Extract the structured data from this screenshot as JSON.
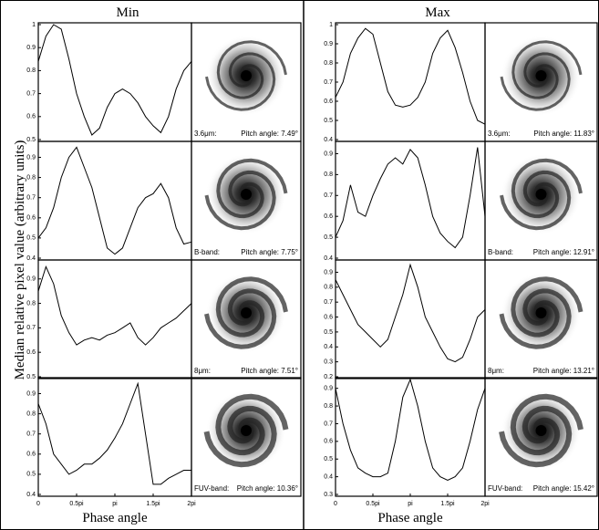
{
  "figure": {
    "columns": [
      "Min",
      "Max"
    ],
    "ylabel": "Median relative pixel value (arbitrary units)",
    "xlabel": "Phase angle"
  },
  "images": [
    {
      "band": "3.6μm:",
      "pitch": "Pitch angle: 7.49°"
    },
    {
      "band": "B-band:",
      "pitch": "Pitch angle: 7.75°"
    },
    {
      "band": "8μm:",
      "pitch": "Pitch angle: 7.51°"
    },
    {
      "band": "FUV-band:",
      "pitch": "Pitch angle: 10.36°"
    },
    {
      "band": "3.6μm:",
      "pitch": "Pitch angle: 11.83°"
    },
    {
      "band": "B-band:",
      "pitch": "Pitch angle: 12.91°"
    },
    {
      "band": "8μm:",
      "pitch": "Pitch angle: 13.21°"
    },
    {
      "band": "FUV-band:",
      "pitch": "Pitch angle: 15.42°"
    }
  ],
  "chart_data": [
    {
      "type": "line",
      "color": "#000000",
      "x": [
        0,
        0.1,
        0.2,
        0.3,
        0.4,
        0.5,
        0.6,
        0.7,
        0.8,
        0.9,
        1.0,
        1.1,
        1.2,
        1.3,
        1.4,
        1.5,
        1.6,
        1.7,
        1.8,
        1.9,
        2.0
      ],
      "values": [
        0.84,
        0.95,
        1.0,
        0.98,
        0.85,
        0.7,
        0.6,
        0.52,
        0.55,
        0.64,
        0.7,
        0.72,
        0.7,
        0.66,
        0.6,
        0.56,
        0.53,
        0.6,
        0.72,
        0.8,
        0.84
      ],
      "xlim": [
        0,
        2
      ],
      "ylim": [
        0.5,
        1
      ],
      "yticks": [
        0.5,
        0.6,
        0.7,
        0.8,
        0.9,
        1
      ]
    },
    {
      "type": "line",
      "color": "#000000",
      "x": [
        0,
        0.1,
        0.2,
        0.3,
        0.4,
        0.5,
        0.6,
        0.7,
        0.8,
        0.9,
        1.0,
        1.1,
        1.2,
        1.3,
        1.4,
        1.5,
        1.6,
        1.7,
        1.8,
        1.9,
        2.0
      ],
      "values": [
        0.5,
        0.55,
        0.65,
        0.8,
        0.9,
        0.95,
        0.85,
        0.75,
        0.6,
        0.45,
        0.42,
        0.45,
        0.55,
        0.65,
        0.7,
        0.72,
        0.77,
        0.7,
        0.55,
        0.47,
        0.48
      ],
      "xlim": [
        0,
        2
      ],
      "ylim": [
        0.4,
        0.97
      ],
      "yticks": [
        0.4,
        0.5,
        0.6,
        0.7,
        0.8,
        0.9
      ]
    },
    {
      "type": "line",
      "color": "#000000",
      "x": [
        0,
        0.1,
        0.2,
        0.3,
        0.4,
        0.5,
        0.6,
        0.7,
        0.8,
        0.9,
        1.0,
        1.1,
        1.2,
        1.3,
        1.4,
        1.5,
        1.6,
        1.7,
        1.8,
        1.9,
        2.0
      ],
      "values": [
        0.85,
        0.95,
        0.88,
        0.75,
        0.68,
        0.63,
        0.65,
        0.66,
        0.65,
        0.67,
        0.68,
        0.7,
        0.72,
        0.66,
        0.63,
        0.66,
        0.7,
        0.72,
        0.74,
        0.77,
        0.8
      ],
      "xlim": [
        0,
        2
      ],
      "ylim": [
        0.5,
        0.97
      ],
      "yticks": [
        0.5,
        0.6,
        0.7,
        0.8,
        0.9
      ]
    },
    {
      "type": "line",
      "color": "#000000",
      "x": [
        0,
        0.1,
        0.2,
        0.3,
        0.4,
        0.5,
        0.6,
        0.7,
        0.8,
        0.9,
        1.0,
        1.1,
        1.2,
        1.3,
        1.4,
        1.5,
        1.6,
        1.7,
        1.8,
        1.9,
        2.0
      ],
      "values": [
        0.85,
        0.75,
        0.6,
        0.55,
        0.5,
        0.52,
        0.55,
        0.55,
        0.58,
        0.62,
        0.68,
        0.75,
        0.85,
        0.95,
        0.7,
        0.45,
        0.45,
        0.48,
        0.5,
        0.52,
        0.52
      ],
      "xlim": [
        0,
        2
      ],
      "ylim": [
        0.4,
        0.97
      ],
      "yticks": [
        0.4,
        0.5,
        0.6,
        0.7,
        0.8,
        0.9
      ],
      "xticks": [
        0,
        {
          "value": 0.5,
          "label": "0.5pi"
        },
        {
          "value": 1,
          "label": "pi"
        },
        {
          "value": 1.5,
          "label": "1.5pi"
        },
        {
          "value": 2,
          "label": "2pi"
        }
      ]
    },
    {
      "type": "line",
      "color": "#000000",
      "x": [
        0,
        0.1,
        0.2,
        0.3,
        0.4,
        0.5,
        0.6,
        0.7,
        0.8,
        0.9,
        1.0,
        1.1,
        1.2,
        1.3,
        1.4,
        1.5,
        1.6,
        1.7,
        1.8,
        1.9,
        2.0
      ],
      "values": [
        0.62,
        0.7,
        0.85,
        0.93,
        0.98,
        0.95,
        0.8,
        0.65,
        0.58,
        0.57,
        0.58,
        0.62,
        0.7,
        0.85,
        0.93,
        0.97,
        0.88,
        0.75,
        0.6,
        0.5,
        0.48
      ],
      "xlim": [
        0,
        2
      ],
      "ylim": [
        0.4,
        1
      ],
      "yticks": [
        0.4,
        0.5,
        0.6,
        0.7,
        0.8,
        0.9,
        1
      ]
    },
    {
      "type": "line",
      "color": "#000000",
      "x": [
        0,
        0.1,
        0.2,
        0.3,
        0.4,
        0.5,
        0.6,
        0.7,
        0.8,
        0.9,
        1.0,
        1.1,
        1.2,
        1.3,
        1.4,
        1.5,
        1.6,
        1.7,
        1.8,
        1.9,
        2.0
      ],
      "values": [
        0.5,
        0.58,
        0.75,
        0.62,
        0.6,
        0.7,
        0.78,
        0.85,
        0.88,
        0.85,
        0.92,
        0.88,
        0.75,
        0.6,
        0.52,
        0.48,
        0.45,
        0.5,
        0.7,
        0.93,
        0.6
      ],
      "xlim": [
        0,
        2
      ],
      "ylim": [
        0.4,
        0.95
      ],
      "yticks": [
        0.4,
        0.5,
        0.6,
        0.7,
        0.8,
        0.9
      ]
    },
    {
      "type": "line",
      "color": "#000000",
      "x": [
        0,
        0.1,
        0.2,
        0.3,
        0.4,
        0.5,
        0.6,
        0.7,
        0.8,
        0.9,
        1.0,
        1.1,
        1.2,
        1.3,
        1.4,
        1.5,
        1.6,
        1.7,
        1.8,
        1.9,
        2.0
      ],
      "values": [
        0.85,
        0.75,
        0.65,
        0.55,
        0.5,
        0.45,
        0.4,
        0.45,
        0.6,
        0.75,
        0.95,
        0.8,
        0.6,
        0.5,
        0.4,
        0.32,
        0.3,
        0.33,
        0.45,
        0.6,
        0.65
      ],
      "xlim": [
        0,
        2
      ],
      "ylim": [
        0.2,
        0.97
      ],
      "yticks": [
        0.2,
        0.3,
        0.4,
        0.5,
        0.6,
        0.7,
        0.8,
        0.9
      ]
    },
    {
      "type": "line",
      "color": "#000000",
      "x": [
        0,
        0.1,
        0.2,
        0.3,
        0.4,
        0.5,
        0.6,
        0.7,
        0.8,
        0.9,
        1.0,
        1.1,
        1.2,
        1.3,
        1.4,
        1.5,
        1.6,
        1.7,
        1.8,
        1.9,
        2.0
      ],
      "values": [
        0.9,
        0.7,
        0.55,
        0.45,
        0.42,
        0.4,
        0.4,
        0.42,
        0.6,
        0.85,
        0.95,
        0.8,
        0.6,
        0.45,
        0.4,
        0.38,
        0.4,
        0.45,
        0.6,
        0.78,
        0.9
      ],
      "xlim": [
        0,
        2
      ],
      "ylim": [
        0.3,
        0.95
      ],
      "yticks": [
        0.3,
        0.4,
        0.5,
        0.6,
        0.7,
        0.8,
        0.9
      ],
      "xticks": [
        0,
        {
          "value": 0.5,
          "label": "0.5pi"
        },
        {
          "value": 1,
          "label": "pi"
        },
        {
          "value": 1.5,
          "label": "1.5pi"
        },
        {
          "value": 2,
          "label": "2pi"
        }
      ]
    }
  ]
}
